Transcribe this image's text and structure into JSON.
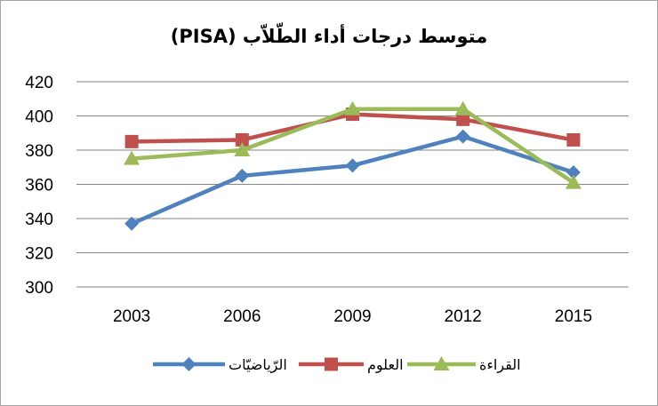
{
  "chart_data": {
    "type": "line",
    "title": "متوسط درجات أداء الطّلاّب (PISA)",
    "categories": [
      "2003",
      "2006",
      "2009",
      "2012",
      "2015"
    ],
    "ylim": [
      300,
      420
    ],
    "yticks": [
      300,
      320,
      340,
      360,
      380,
      400,
      420
    ],
    "grid": true,
    "legend_position": "bottom",
    "series": [
      {
        "name": "الرّياضيّات",
        "values": [
          337,
          365,
          371,
          388,
          367
        ],
        "color": "#4f81bd",
        "marker": "diamond"
      },
      {
        "name": "العلوم",
        "values": [
          385,
          386,
          401,
          398,
          386
        ],
        "color": "#c0504d",
        "marker": "square"
      },
      {
        "name": "القراءة",
        "values": [
          375,
          380,
          404,
          404,
          361
        ],
        "color": "#9bbb59",
        "marker": "triangle"
      }
    ]
  }
}
